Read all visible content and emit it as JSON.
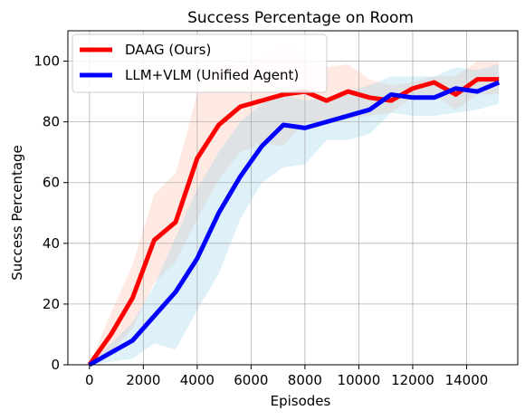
{
  "chart_data": {
    "type": "line",
    "title": "Success Percentage on Room",
    "xlabel": "Episodes",
    "ylabel": "Success Percentage",
    "xlim": [
      -800,
      15900
    ],
    "ylim": [
      0,
      110
    ],
    "xticks": [
      0,
      2000,
      4000,
      6000,
      8000,
      10000,
      12000,
      14000
    ],
    "yticks": [
      0,
      20,
      40,
      60,
      80,
      100
    ],
    "grid": true,
    "legend_position": "top-left",
    "series": [
      {
        "name": "DAAG (Ours)",
        "color": "#ff0000",
        "band_color": "#ffb399",
        "x": [
          0,
          800,
          1600,
          2400,
          3200,
          4000,
          4800,
          5600,
          6400,
          7200,
          8000,
          8800,
          9600,
          10400,
          11200,
          12000,
          12800,
          13600,
          14400,
          15200
        ],
        "y": [
          0,
          10,
          22,
          41,
          47,
          68,
          79,
          85,
          87,
          89,
          90,
          87,
          90,
          88,
          87,
          91,
          93,
          89,
          94,
          94
        ],
        "upper": [
          0,
          17,
          33,
          56,
          63,
          89,
          99,
          100,
          101,
          106,
          101,
          98,
          99,
          94,
          92,
          93,
          95,
          95,
          100,
          100
        ],
        "lower": [
          0,
          4,
          12,
          27,
          34,
          48,
          61,
          70,
          73,
          72,
          80,
          79,
          81,
          82,
          83,
          88,
          89,
          84,
          89,
          89
        ]
      },
      {
        "name": "LLM+VLM (Unified Agent)",
        "color": "#0000ff",
        "band_color": "#87ceeb",
        "x": [
          0,
          800,
          1600,
          2400,
          3200,
          4000,
          4800,
          5600,
          6400,
          7200,
          8000,
          8800,
          9600,
          10400,
          11200,
          12000,
          12800,
          13600,
          14400,
          15200
        ],
        "y": [
          0,
          4,
          8,
          16,
          24,
          35,
          50,
          62,
          72,
          79,
          78,
          80,
          82,
          84,
          89,
          88,
          88,
          91,
          90,
          93
        ],
        "upper": [
          0,
          7,
          14,
          26,
          42,
          58,
          70,
          80,
          86,
          89,
          87,
          88,
          90,
          92,
          95,
          95,
          95,
          98,
          97,
          99
        ],
        "lower": [
          0,
          1,
          2,
          7,
          5,
          18,
          30,
          48,
          60,
          65,
          66,
          74,
          74,
          76,
          83,
          82,
          82,
          83,
          84,
          86
        ]
      }
    ]
  }
}
